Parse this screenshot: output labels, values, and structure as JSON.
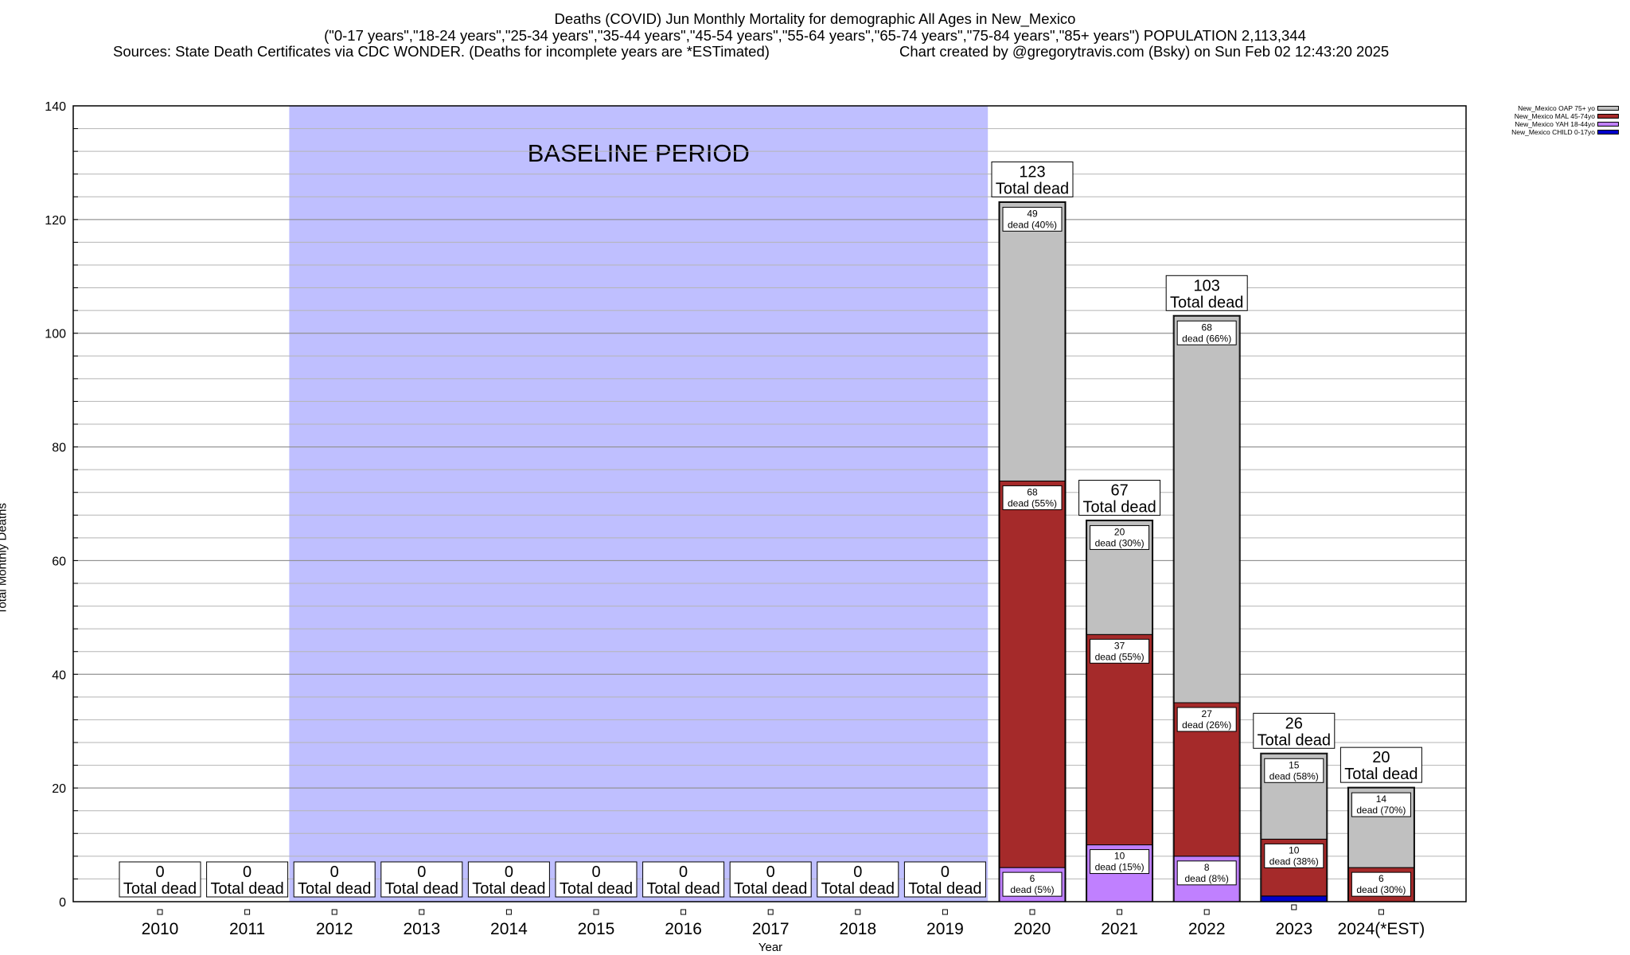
{
  "header": {
    "line1": "Deaths (COVID) Jun Monthly Mortality for demographic All Ages in New_Mexico",
    "line2": "(\"0-17 years\",\"18-24 years\",\"25-34 years\",\"35-44 years\",\"45-54 years\",\"55-64 years\",\"65-74 years\",\"75-84 years\",\"85+ years\") POPULATION 2,113,344",
    "line3_left": "Sources: State Death Certificates via CDC WONDER. (Deaths for incomplete years are *ESTimated)",
    "line3_right": "Chart created by @gregorytravis.com (Bsky) on Sun Feb 02 12:43:20 2025"
  },
  "chart_data": {
    "type": "bar",
    "stacked": true,
    "xlabel": "Year",
    "ylabel": "Total Monthly Deaths",
    "ylim": [
      0,
      140
    ],
    "yticks": [
      0,
      20,
      40,
      60,
      80,
      100,
      120,
      140
    ],
    "grid": true,
    "legend_position": "top-right",
    "baseline_label": "BASELINE PERIOD",
    "baseline_range": [
      "2012",
      "2019"
    ],
    "total_suffix": "Total dead",
    "categories": [
      "2010",
      "2011",
      "2012",
      "2013",
      "2014",
      "2015",
      "2016",
      "2017",
      "2018",
      "2019",
      "2020",
      "2021",
      "2022",
      "2023",
      "2024(*EST)"
    ],
    "totals": [
      0,
      0,
      0,
      0,
      0,
      0,
      0,
      0,
      0,
      0,
      123,
      67,
      103,
      26,
      20
    ],
    "series": [
      {
        "name": "New_Mexico CHILD 0-17yo",
        "color": "#0000cc",
        "values": [
          0,
          0,
          0,
          0,
          0,
          0,
          0,
          0,
          0,
          0,
          0,
          0,
          0,
          1,
          0
        ]
      },
      {
        "name": "New_Mexico YAH 18-44yo",
        "color": "#c080ff",
        "values": [
          0,
          0,
          0,
          0,
          0,
          0,
          0,
          0,
          0,
          0,
          6,
          10,
          8,
          0,
          0
        ]
      },
      {
        "name": "New_Mexico MAL 45-74yo",
        "color": "#a52a2a",
        "values": [
          0,
          0,
          0,
          0,
          0,
          0,
          0,
          0,
          0,
          0,
          68,
          37,
          27,
          10,
          6
        ]
      },
      {
        "name": "New_Mexico OAP 75+ yo",
        "color": "#c0c0c0",
        "values": [
          0,
          0,
          0,
          0,
          0,
          0,
          0,
          0,
          0,
          0,
          49,
          20,
          68,
          15,
          14
        ]
      }
    ],
    "segment_labels": {
      "2020": [
        {
          "series": "New_Mexico OAP 75+ yo",
          "value": "49",
          "text": "dead (40%)"
        },
        {
          "series": "New_Mexico MAL 45-74yo",
          "value": "68",
          "text": "dead (55%)"
        },
        {
          "series": "New_Mexico YAH 18-44yo",
          "value": "6",
          "text": "dead (5%)"
        }
      ],
      "2021": [
        {
          "series": "New_Mexico OAP 75+ yo",
          "value": "20",
          "text": "dead (30%)"
        },
        {
          "series": "New_Mexico MAL 45-74yo",
          "value": "37",
          "text": "dead (55%)"
        },
        {
          "series": "New_Mexico YAH 18-44yo",
          "value": "10",
          "text": "dead (15%)"
        }
      ],
      "2022": [
        {
          "series": "New_Mexico OAP 75+ yo",
          "value": "68",
          "text": "dead (66%)"
        },
        {
          "series": "New_Mexico MAL 45-74yo",
          "value": "27",
          "text": "dead (26%)"
        },
        {
          "series": "New_Mexico YAH 18-44yo",
          "value": "8",
          "text": "dead (8%)"
        }
      ],
      "2023": [
        {
          "series": "New_Mexico OAP 75+ yo",
          "value": "15",
          "text": "dead (58%)"
        },
        {
          "series": "New_Mexico MAL 45-74yo",
          "value": "10",
          "text": "dead (38%)"
        }
      ],
      "2024(*EST)": [
        {
          "series": "New_Mexico OAP 75+ yo",
          "value": "14",
          "text": "dead (70%)"
        },
        {
          "series": "New_Mexico MAL 45-74yo",
          "value": "6",
          "text": "dead (30%)"
        }
      ]
    },
    "legend": [
      "New_Mexico OAP 75+ yo",
      "New_Mexico MAL 45-74yo",
      "New_Mexico YAH 18-44yo",
      "New_Mexico CHILD 0-17yo"
    ]
  }
}
